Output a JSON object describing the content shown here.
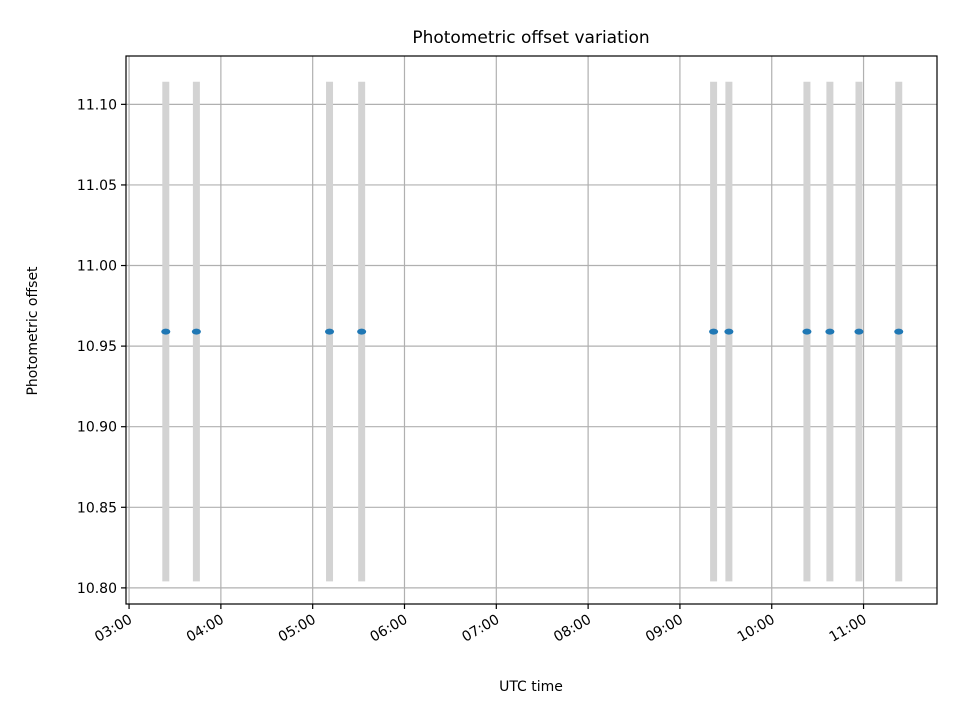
{
  "chart_data": {
    "type": "scatter",
    "title": "Photometric offset variation",
    "xlabel": "UTC time",
    "ylabel": "Photometric offset",
    "x_ticks": [
      "03:00",
      "04:00",
      "05:00",
      "06:00",
      "07:00",
      "08:00",
      "09:00",
      "10:00",
      "11:00"
    ],
    "y_ticks": [
      "10.80",
      "10.85",
      "10.90",
      "10.95",
      "11.00",
      "11.05",
      "11.10"
    ],
    "xlim": [
      "02:58",
      "11:48"
    ],
    "ylim": [
      10.79,
      11.13
    ],
    "grid": true,
    "points": [
      {
        "time": "03:24",
        "value": 10.959,
        "err_low": 10.804,
        "err_high": 11.114
      },
      {
        "time": "03:44",
        "value": 10.959,
        "err_low": 10.804,
        "err_high": 11.114
      },
      {
        "time": "05:11",
        "value": 10.959,
        "err_low": 10.804,
        "err_high": 11.114
      },
      {
        "time": "05:32",
        "value": 10.959,
        "err_low": 10.804,
        "err_high": 11.114
      },
      {
        "time": "09:22",
        "value": 10.959,
        "err_low": 10.804,
        "err_high": 11.114
      },
      {
        "time": "09:32",
        "value": 10.959,
        "err_low": 10.804,
        "err_high": 11.114
      },
      {
        "time": "10:23",
        "value": 10.959,
        "err_low": 10.804,
        "err_high": 11.114
      },
      {
        "time": "10:38",
        "value": 10.959,
        "err_low": 10.804,
        "err_high": 11.114
      },
      {
        "time": "10:57",
        "value": 10.959,
        "err_low": 10.804,
        "err_high": 11.114
      },
      {
        "time": "11:23",
        "value": 10.959,
        "err_low": 10.804,
        "err_high": 11.114
      }
    ],
    "colors": {
      "point": "#1f77b4",
      "errorbar": "#d3d3d3",
      "grid": "#b0b0b0"
    }
  }
}
